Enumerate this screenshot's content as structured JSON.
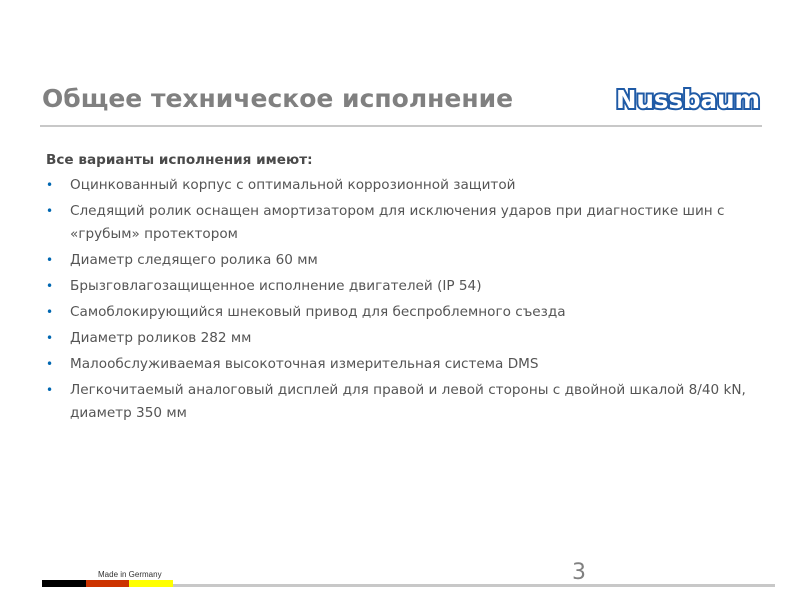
{
  "slide": {
    "title": "Общее техническое исполнение",
    "logo_text": "Nussbaum",
    "intro": "Все варианты исполнения имеют:",
    "bullets": [
      "Оцинкованный корпус с оптимальной коррозионной защитой",
      "Следящий ролик оснащен амортизатором для исключения ударов при диагностике шин с «грубым» протектором",
      "Диаметр следящего ролика 60 мм",
      "Брызговлагозащищенное исполнение двигателей (IP 54)",
      "Самоблокирующийся шнековый привод для беспроблемного съезда",
      "Диаметр роликов 282 мм",
      "Малообслуживаемая высокоточная измерительная система  DMS",
      "Легкочитаемый аналоговый дисплей для правой и левой стороны с двойной шкалой 8/40 kN, диаметр 350 мм"
    ],
    "footer_text": "Made in Germany",
    "page_number": "3"
  },
  "colors": {
    "logo": "#1f5aa6",
    "flag_black": "#000000",
    "flag_red": "#cc3300",
    "flag_yellow": "#ffff00"
  }
}
